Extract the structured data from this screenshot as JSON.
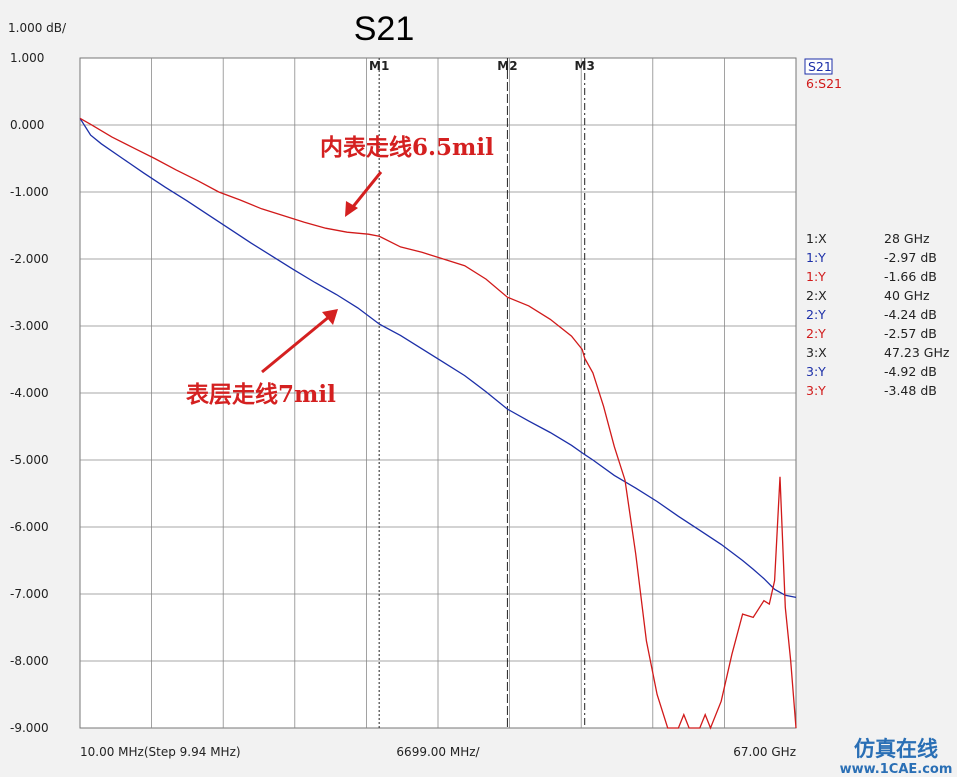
{
  "chart_data": {
    "type": "line",
    "title": "S21",
    "scale_label": "1.000 dB/",
    "xlim_mhz": [
      10,
      67000
    ],
    "ylim": [
      -9,
      1
    ],
    "y_ticks": [
      1,
      0,
      -1,
      -2,
      -3,
      -4,
      -5,
      -6,
      -7,
      -8,
      -9
    ],
    "y_tick_labels": [
      "1.000",
      "0.000",
      "-1.000",
      "-2.000",
      "-3.000",
      "-4.000",
      "-5.000",
      "-6.000",
      "-7.000",
      "-8.000",
      "-9.000"
    ],
    "x_labels": {
      "start": "10.00 MHz(Step 9.94 MHz)",
      "mid": "6699.00 MHz/",
      "end": "67.00 GHz"
    },
    "grid": true,
    "legend_position": "top-right",
    "legend": [
      {
        "label": "S21",
        "color": "#1c2fa8",
        "boxed": true
      },
      {
        "label": "6:S21",
        "color": "#d11a1a"
      }
    ],
    "markers": [
      {
        "label": "M1",
        "x_ghz": 28
      },
      {
        "label": "M2",
        "x_ghz": 40
      },
      {
        "label": "M3",
        "x_ghz": 47.23
      }
    ],
    "marker_table": [
      {
        "label": "1:X",
        "value": "28 GHz",
        "color": "#222222"
      },
      {
        "label": "1:Y",
        "value": "-2.97 dB",
        "color": "#1c2fa8"
      },
      {
        "label": "1:Y",
        "value": "-1.66 dB",
        "color": "#d11a1a"
      },
      {
        "label": "2:X",
        "value": "40 GHz",
        "color": "#222222"
      },
      {
        "label": "2:Y",
        "value": "-4.24 dB",
        "color": "#1c2fa8"
      },
      {
        "label": "2:Y",
        "value": "-2.57 dB",
        "color": "#d11a1a"
      },
      {
        "label": "3:X",
        "value": "47.23 GHz",
        "color": "#222222"
      },
      {
        "label": "3:Y",
        "value": "-4.92 dB",
        "color": "#1c2fa8"
      },
      {
        "label": "3:Y",
        "value": "-3.48 dB",
        "color": "#d11a1a"
      }
    ],
    "series": [
      {
        "name": "S21",
        "color": "#1c2fa8",
        "x_ghz": [
          0.01,
          1,
          2,
          4,
          6,
          8,
          10,
          12,
          14,
          16,
          18,
          20,
          22,
          24,
          26,
          28,
          30,
          32,
          34,
          36,
          38,
          40,
          42,
          44,
          46,
          47.23,
          48,
          50,
          52,
          54,
          56,
          58,
          60,
          62,
          63,
          64,
          65,
          66,
          67
        ],
        "y_db": [
          0.1,
          -0.15,
          -0.28,
          -0.5,
          -0.72,
          -0.93,
          -1.13,
          -1.34,
          -1.55,
          -1.76,
          -1.96,
          -2.16,
          -2.35,
          -2.53,
          -2.73,
          -2.97,
          -3.14,
          -3.34,
          -3.54,
          -3.74,
          -3.98,
          -4.24,
          -4.42,
          -4.59,
          -4.78,
          -4.92,
          -5.0,
          -5.23,
          -5.42,
          -5.62,
          -5.84,
          -6.05,
          -6.26,
          -6.5,
          -6.63,
          -6.77,
          -6.93,
          -7.02,
          -7.05
        ]
      },
      {
        "name": "6:S21",
        "color": "#d11a1a",
        "x_ghz": [
          0.01,
          1,
          3,
          5,
          7,
          9,
          11,
          13,
          15,
          17,
          19,
          21,
          23,
          25,
          27,
          28,
          30,
          32,
          34,
          36,
          38,
          40,
          42,
          44,
          46,
          47,
          47.23,
          48,
          49,
          50,
          51,
          52,
          53,
          54,
          55,
          55.5,
          56,
          56.5,
          57,
          57.5,
          58,
          58.5,
          59,
          60,
          61,
          62,
          63,
          64,
          64.5,
          65,
          65.5,
          66,
          66.5,
          67
        ],
        "y_db": [
          0.1,
          0.01,
          -0.18,
          -0.34,
          -0.5,
          -0.67,
          -0.83,
          -1.0,
          -1.12,
          -1.25,
          -1.35,
          -1.45,
          -1.54,
          -1.6,
          -1.63,
          -1.66,
          -1.82,
          -1.9,
          -2.0,
          -2.1,
          -2.3,
          -2.57,
          -2.7,
          -2.9,
          -3.15,
          -3.35,
          -3.48,
          -3.7,
          -4.2,
          -4.8,
          -5.3,
          -6.4,
          -7.7,
          -8.5,
          -9.0,
          -9.0,
          -9.0,
          -8.8,
          -9.0,
          -9.0,
          -9.0,
          -8.8,
          -9.0,
          -8.6,
          -7.9,
          -7.3,
          -7.35,
          -7.1,
          -7.15,
          -6.8,
          -5.25,
          -7.2,
          -8.0,
          -9.0
        ]
      }
    ],
    "annotations": [
      {
        "text": "内表走线6.5mil",
        "color": "#d42020"
      },
      {
        "text": "表层走线7mil",
        "color": "#d42020"
      }
    ]
  },
  "watermark": {
    "line1": "仿真在线",
    "line2": "www.1CAE.com"
  }
}
